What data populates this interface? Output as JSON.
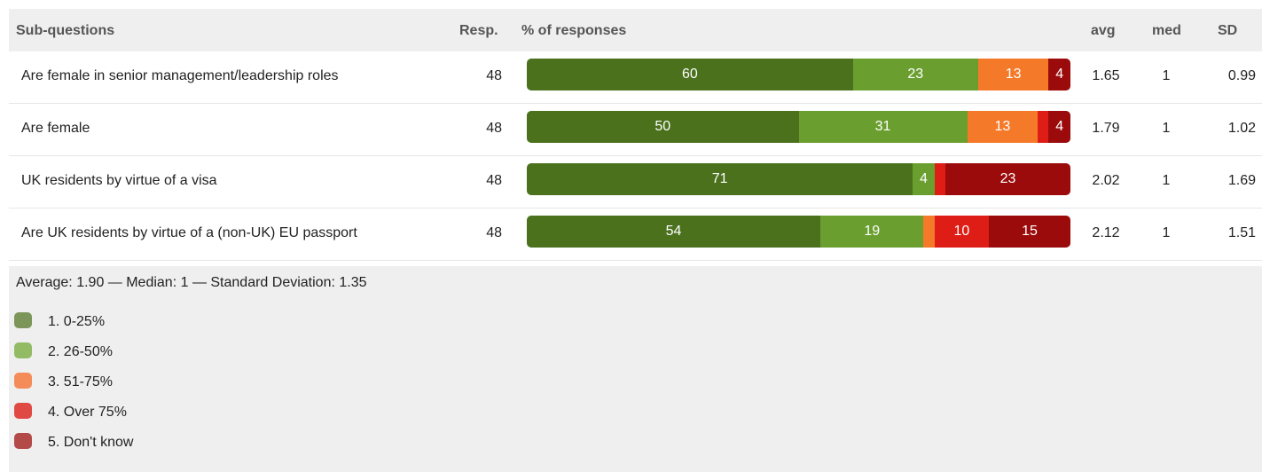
{
  "header": {
    "subq": "Sub-questions",
    "resp": "Resp.",
    "pct": "% of responses",
    "avg": "avg",
    "med": "med",
    "sd": "SD"
  },
  "colors": [
    "#4b711d",
    "#6a9f2f",
    "#f47a2a",
    "#dd1d16",
    "#9b0b0b"
  ],
  "legend_colors": [
    "#7b9658",
    "#93bb66",
    "#f48c5a",
    "#df4a44",
    "#b34a48"
  ],
  "chart_data": {
    "type": "bar",
    "stacked": true,
    "orientation": "horizontal",
    "categories": [
      "Are female in senior management/leadership roles",
      "Are female",
      "UK residents by virtue of a visa",
      "Are UK residents by virtue of a (non-UK) EU passport"
    ],
    "series": [
      {
        "name": "1. 0-25%",
        "values": [
          60,
          50,
          71,
          54
        ]
      },
      {
        "name": "2. 26-50%",
        "values": [
          23,
          31,
          4,
          19
        ]
      },
      {
        "name": "3. 51-75%",
        "values": [
          13,
          13,
          0,
          2
        ]
      },
      {
        "name": "4. Over 75%",
        "values": [
          0,
          2,
          2,
          10
        ]
      },
      {
        "name": "5. Don't know",
        "values": [
          4,
          4,
          23,
          15
        ]
      }
    ],
    "responses": [
      48,
      48,
      48,
      48
    ],
    "avg": [
      "1.65",
      "1.79",
      "2.02",
      "2.12"
    ],
    "med": [
      "1",
      "1",
      "1",
      "1"
    ],
    "sd": [
      "0.99",
      "1.02",
      "1.69",
      "1.51"
    ],
    "xlim": [
      0,
      100
    ]
  },
  "summary": "Average: 1.90 — Median: 1 — Standard Deviation: 1.35"
}
